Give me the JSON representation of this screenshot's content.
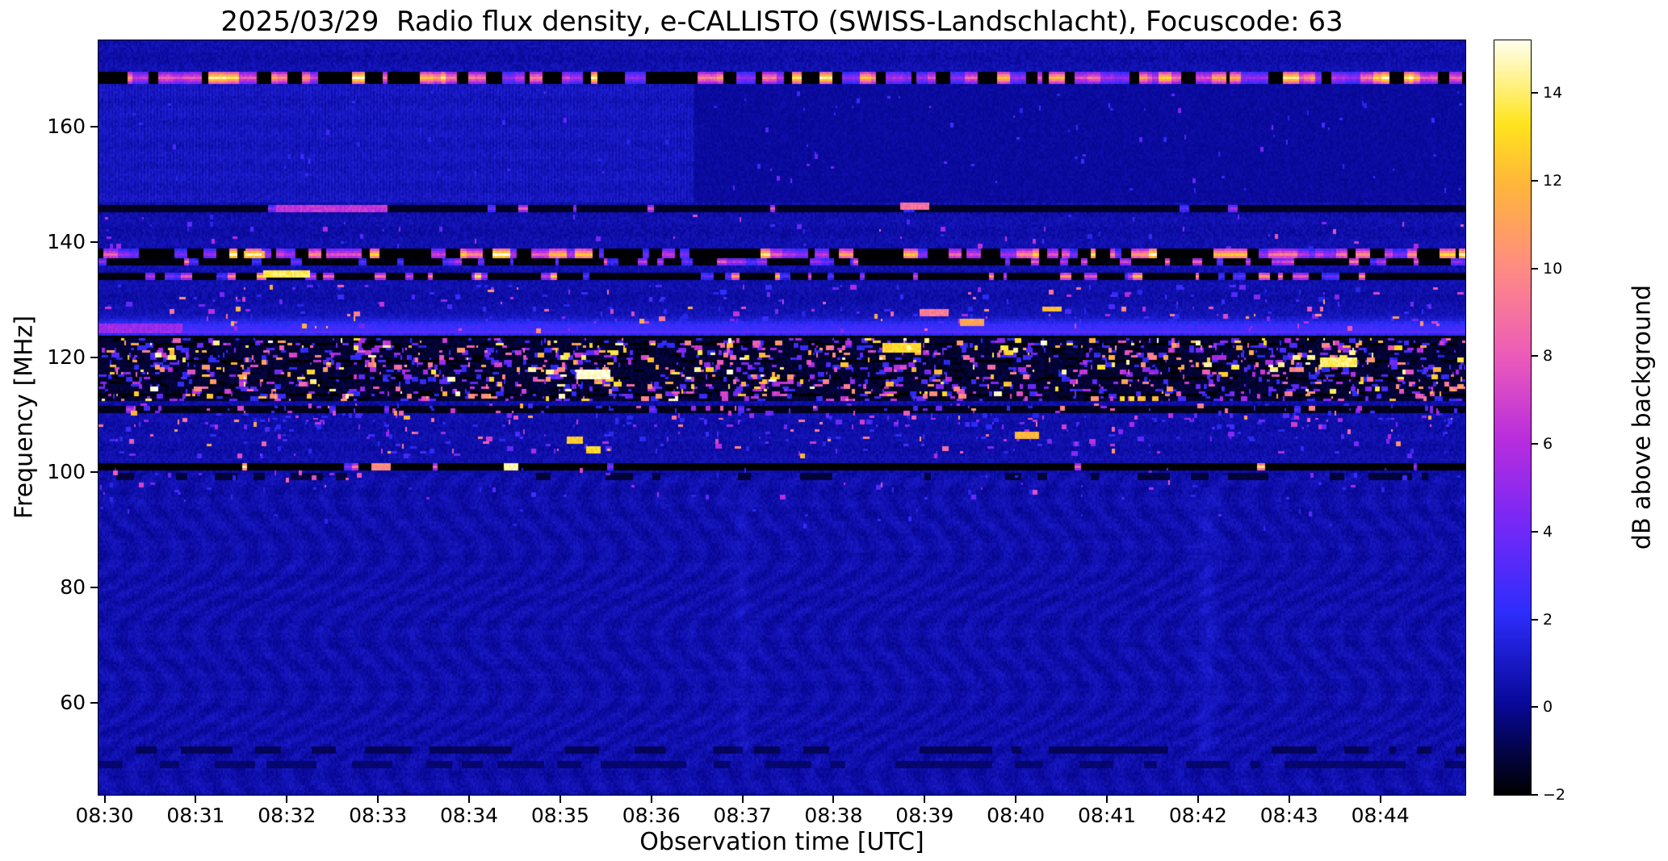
{
  "chart_data": {
    "type": "heatmap",
    "title": "2025/03/29  Radio flux density, e-CALLISTO (SWISS-Landschlacht), Focuscode: 63",
    "xlabel": "Observation time [UTC]",
    "ylabel": "Frequency [MHz]",
    "date": "2025/03/29",
    "station": "SWISS-Landschlacht",
    "focuscode": 63,
    "x_ticks": [
      "08:30",
      "08:31",
      "08:32",
      "08:33",
      "08:34",
      "08:35",
      "08:36",
      "08:37",
      "08:38",
      "08:39",
      "08:40",
      "08:41",
      "08:42",
      "08:43",
      "08:44"
    ],
    "x_range_minutes": [
      0,
      15
    ],
    "y_ticks": [
      160,
      140,
      120,
      100,
      80,
      60
    ],
    "freq_range_mhz": [
      44,
      175
    ],
    "colorbar": {
      "label": "dB above background",
      "ticks": [
        14,
        12,
        10,
        8,
        6,
        4,
        2,
        0,
        -2
      ],
      "vmin": -2,
      "vmax": 15.2
    },
    "background_db": 0.45,
    "seed": 63,
    "colormap_stops": [
      [
        0.0,
        0,
        0,
        0
      ],
      [
        0.12,
        8,
        8,
        152
      ],
      [
        0.24,
        45,
        45,
        252
      ],
      [
        0.36,
        118,
        40,
        246
      ],
      [
        0.47,
        184,
        45,
        222
      ],
      [
        0.58,
        235,
        90,
        186
      ],
      [
        0.7,
        255,
        140,
        130
      ],
      [
        0.81,
        255,
        182,
        58
      ],
      [
        0.89,
        255,
        228,
        30
      ],
      [
        1.0,
        255,
        255,
        238
      ]
    ],
    "texture_boundary_minute": 6.55,
    "upper_texture_band_mhz": [
      147,
      167.5
    ],
    "glow": {
      "center": 125.0,
      "sigma": 1.25,
      "gain": 2.1
    },
    "dense_zone": {
      "f_top": 123.2,
      "f_bottom": 112.5,
      "base": -1.3,
      "noise": 0.8,
      "blob_count": 1500,
      "blob_amp_max": 15.4,
      "dark_blob_count": 280,
      "dark_rows": [
        113.3,
        116.3,
        119.2,
        122.3
      ]
    },
    "bands": [
      {
        "freq": 168.6,
        "halfwidth": 1.0,
        "style": "dash",
        "base": -2.0,
        "duty": 0.55,
        "amp": [
          5,
          15.4
        ],
        "dash": [
          3,
          12
        ],
        "gap": [
          2,
          10
        ]
      },
      {
        "freq": 145.8,
        "halfwidth": 0.3,
        "style": "dash",
        "base": -1.5,
        "duty": 0.16,
        "amp": [
          3,
          8
        ],
        "dash": [
          2,
          8
        ],
        "gap": [
          4,
          28
        ]
      },
      {
        "freq": 138.0,
        "halfwidth": 0.8,
        "style": "dash",
        "base": -2.0,
        "duty": 0.5,
        "amp": [
          4,
          15.4
        ],
        "dash": [
          3,
          12
        ],
        "gap": [
          2,
          10
        ]
      },
      {
        "freq": 136.5,
        "halfwidth": 0.4,
        "style": "dash",
        "base": -1.8,
        "duty": 0.3,
        "amp": [
          3,
          10
        ],
        "dash": [
          2,
          8
        ],
        "gap": [
          3,
          14
        ]
      },
      {
        "freq": 134.2,
        "halfwidth": 0.6,
        "style": "dash",
        "base": -1.8,
        "duty": 0.35,
        "amp": [
          3,
          14
        ],
        "dash": [
          2,
          9
        ],
        "gap": [
          3,
          14
        ]
      },
      {
        "freq": 123.45,
        "halfwidth": 0.2,
        "style": "line",
        "base": -1.9
      },
      {
        "freq": 124.35,
        "halfwidth": 0.2,
        "style": "line",
        "base": 3.3
      },
      {
        "freq": 110.9,
        "halfwidth": 0.35,
        "style": "dash",
        "base": -1.6,
        "duty": 0.14,
        "amp": [
          3,
          7.5
        ],
        "dash": [
          2,
          6
        ],
        "gap": [
          6,
          30
        ]
      },
      {
        "freq": 101.0,
        "halfwidth": 0.35,
        "style": "dash",
        "base": -2.0,
        "duty": 0.12,
        "amp": [
          4,
          15
        ],
        "dash": [
          2,
          6
        ],
        "gap": [
          6,
          28
        ]
      },
      {
        "freq": 99.3,
        "halfwidth": 0.3,
        "style": "darkdash",
        "base": -1.2,
        "duty": 0.35,
        "dash": [
          3,
          12
        ],
        "gap": [
          4,
          18
        ]
      },
      {
        "freq": 51.6,
        "halfwidth": 0.35,
        "style": "darkdash",
        "base": -0.8,
        "duty": 0.5,
        "dash": [
          4,
          20
        ],
        "gap": [
          4,
          16
        ]
      },
      {
        "freq": 49.4,
        "halfwidth": 0.3,
        "style": "darkdash",
        "base": -0.5,
        "duty": 0.45,
        "dash": [
          4,
          20
        ],
        "gap": [
          4,
          16
        ]
      }
    ],
    "scatter": [
      {
        "fmin": 124.8,
        "fmax": 132.5,
        "count": 240,
        "amp": 12,
        "wmax": 4
      },
      {
        "fmin": 139.0,
        "fmax": 144.5,
        "count": 60,
        "amp": 9,
        "wmax": 3
      },
      {
        "fmin": 103.0,
        "fmax": 112.0,
        "count": 300,
        "amp": 12,
        "wmax": 4
      },
      {
        "fmin": 108.0,
        "fmax": 112.0,
        "count": 120,
        "amp": 10,
        "wmax": 3
      },
      {
        "fmin": 96.0,
        "fmax": 100.3,
        "count": 70,
        "amp": 9,
        "wmax": 3
      },
      {
        "fmin": 90.0,
        "fmax": 95.5,
        "count": 25,
        "amp": 5,
        "wmax": 2
      },
      {
        "fmin": 149.0,
        "fmax": 166.0,
        "count": 70,
        "amp": 4.5,
        "wmax": 2,
        "t0": 6.6,
        "t1": 15
      },
      {
        "fmin": 149.0,
        "fmax": 166.0,
        "count": 30,
        "amp": 3.5,
        "wmax": 2,
        "t0": 0,
        "t1": 6.5
      }
    ],
    "events": [
      {
        "f": 145.85,
        "t0": 1.95,
        "t1": 3.15,
        "v": 6.5,
        "h": 0.5
      },
      {
        "f": 134.4,
        "t0": 1.8,
        "t1": 2.3,
        "v": 13.8,
        "h": 0.8
      },
      {
        "f": 137.9,
        "t0": 1.6,
        "t1": 1.8,
        "v": 12,
        "h": 0.7
      },
      {
        "f": 127.6,
        "t0": 9.0,
        "t1": 9.3,
        "v": 9.5,
        "h": 0.8
      },
      {
        "f": 126.2,
        "t0": 9.45,
        "t1": 9.7,
        "v": 11,
        "h": 0.8
      },
      {
        "f": 128.4,
        "t0": 10.35,
        "t1": 10.55,
        "v": 12,
        "h": 0.8
      },
      {
        "f": 117.0,
        "t0": 5.25,
        "t1": 5.6,
        "v": 15,
        "h": 1.4
      },
      {
        "f": 121.5,
        "t0": 8.6,
        "t1": 9.0,
        "v": 13,
        "h": 1.2
      },
      {
        "f": 119.0,
        "t0": 13.4,
        "t1": 13.8,
        "v": 14,
        "h": 1.2
      },
      {
        "f": 105.6,
        "t0": 5.15,
        "t1": 5.3,
        "v": 12.5,
        "h": 0.7
      },
      {
        "f": 103.8,
        "t0": 5.35,
        "t1": 5.5,
        "v": 13,
        "h": 0.7
      },
      {
        "f": 106.3,
        "t0": 10.05,
        "t1": 10.3,
        "v": 12,
        "h": 0.8
      },
      {
        "f": 100.9,
        "t0": 3.0,
        "t1": 3.2,
        "v": 10,
        "h": 0.6
      },
      {
        "f": 100.9,
        "t0": 4.45,
        "t1": 4.6,
        "v": 14.5,
        "h": 0.6
      },
      {
        "f": 146.2,
        "t0": 8.8,
        "t1": 9.1,
        "v": 9,
        "h": 0.5
      },
      {
        "f": 125.1,
        "t0": 0.0,
        "t1": 0.9,
        "v": 5.2,
        "h": 1.2
      }
    ],
    "vertical_streaks": [
      {
        "t": 7.05,
        "w": 3,
        "f0": 50,
        "f1": 97,
        "gain": 0.45
      },
      {
        "t": 12.15,
        "w": 4,
        "f0": 50,
        "f1": 97,
        "gain": 0.5
      }
    ]
  }
}
